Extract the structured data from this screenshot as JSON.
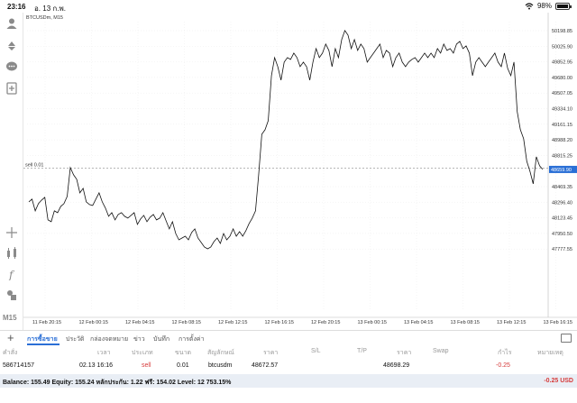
{
  "status": {
    "time": "23:16",
    "date": "อ. 13 ก.พ.",
    "battery": "98%"
  },
  "chart_header": {
    "symbol": "BTCUSDm, M15"
  },
  "chart_data": {
    "type": "line",
    "title": "BTCUSDm, M15",
    "price_label": "48659.90",
    "order_line": {
      "label": "sell 0.01",
      "price": 48672.57
    },
    "y_ticks": [
      "50198.85",
      "50025.90",
      "49852.95",
      "49680.00",
      "49507.05",
      "49334.10",
      "49161.15",
      "48988.20",
      "48815.25",
      "48469.35",
      "48296.40",
      "48123.45",
      "47950.50",
      "47777.55"
    ],
    "x_ticks": [
      "11 Feb 20:15",
      "12 Feb 00:15",
      "12 Feb 04:15",
      "12 Feb 08:15",
      "12 Feb 12:15",
      "12 Feb 16:15",
      "12 Feb 20:15",
      "13 Feb 00:15",
      "13 Feb 04:15",
      "13 Feb 08:15",
      "13 Feb 12:15",
      "13 Feb 16:15"
    ],
    "ylim": [
      47700,
      50300
    ],
    "values": [
      48300,
      48330,
      48200,
      48280,
      48320,
      48350,
      48100,
      48080,
      48200,
      48180,
      48250,
      48280,
      48360,
      48680,
      48600,
      48550,
      48400,
      48450,
      48300,
      48270,
      48260,
      48330,
      48400,
      48300,
      48230,
      48140,
      48180,
      48100,
      48160,
      48180,
      48140,
      48120,
      48150,
      48180,
      48050,
      48110,
      48150,
      48080,
      48130,
      48160,
      48100,
      48120,
      48180,
      48090,
      48000,
      48080,
      47950,
      47880,
      47900,
      47920,
      47880,
      47960,
      48000,
      47900,
      47850,
      47800,
      47780,
      47800,
      47860,
      47900,
      47840,
      47950,
      47880,
      47920,
      48000,
      47920,
      47970,
      47920,
      47980,
      48060,
      48120,
      48200,
      48600,
      49050,
      49100,
      49200,
      49700,
      49900,
      49800,
      49650,
      49850,
      49900,
      49880,
      49950,
      49900,
      49800,
      49850,
      49800,
      49650,
      49850,
      50000,
      49900,
      49950,
      50050,
      49980,
      49800,
      50000,
      49900,
      50100,
      50200,
      50150,
      50000,
      50100,
      49980,
      50050,
      50000,
      49850,
      49900,
      49950,
      50000,
      50050,
      49900,
      49980,
      49950,
      49800,
      49900,
      49950,
      49850,
      49800,
      49850,
      49880,
      49900,
      49850,
      49900,
      49950,
      49900,
      49950,
      49900,
      50000,
      49950,
      50050,
      49980,
      50000,
      49950,
      50050,
      50080,
      50000,
      50030,
      49950,
      49700,
      49850,
      49900,
      49850,
      49800,
      49850,
      49900,
      49950,
      49850,
      49800,
      49950,
      49780,
      49700,
      49850,
      49300,
      49100,
      49000,
      48750,
      48640,
      48500,
      48800,
      48700,
      48660
    ]
  },
  "left_toolbar": {
    "timeframe": "M15"
  },
  "tabs": [
    "การซื้อขาย",
    "ประวัติ",
    "กล่องจดหมาย",
    "ข่าว",
    "บันทึก",
    "การตั้งค่า"
  ],
  "table": {
    "headers": [
      "คำสั่ง",
      "เวลา",
      "ประเภท",
      "ขนาด",
      "สัญลักษณ์",
      "ราคา",
      "S/L",
      "T/P",
      "ราคา",
      "Swap",
      "กำไร",
      "หมายเหตุ"
    ],
    "row": {
      "order": "586714157",
      "time": "02.13 16:16",
      "type": "sell",
      "size": "0.01",
      "symbol": "btcusdm",
      "price": "48672.57",
      "current": "48698.29",
      "profit": "-0.25"
    }
  },
  "balance": {
    "text": "Balance: 155.49 Equity: 155.24 หลักประกัน: 1.22 ฟรี: 154.02 Level: 12 753.15%",
    "total": "-0.25  USD"
  }
}
